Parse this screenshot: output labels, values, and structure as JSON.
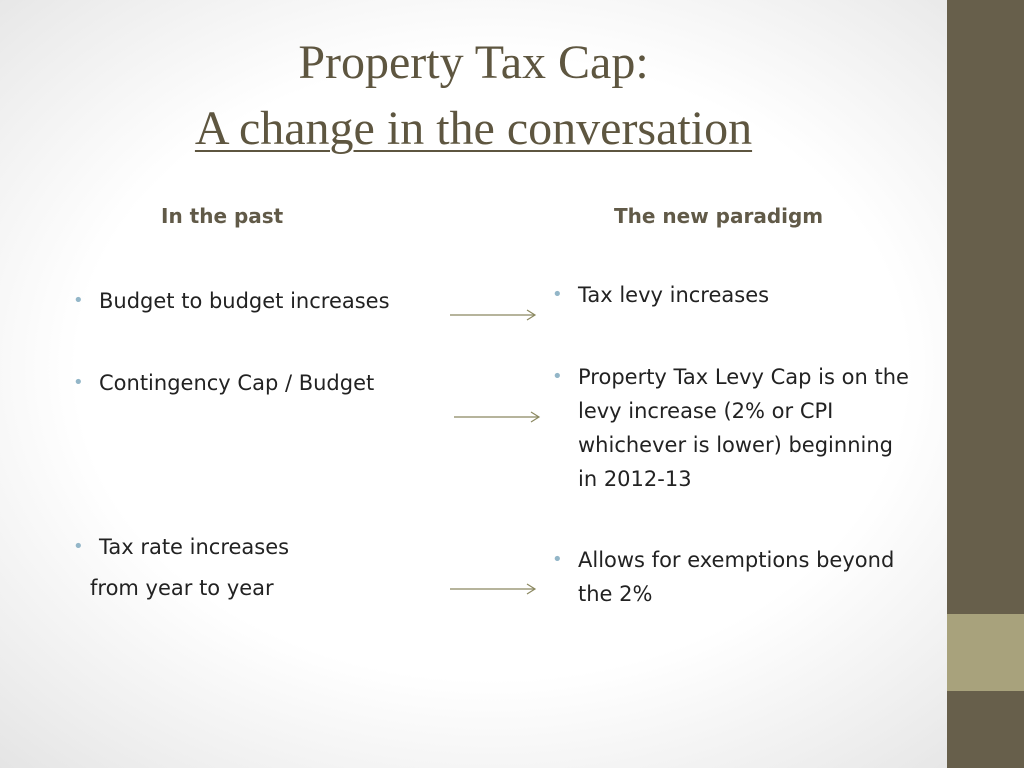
{
  "slide": {
    "title_line1": "Property Tax Cap:",
    "title_line2": "A change in the conversation",
    "left_column": {
      "heading": "In the past",
      "items": [
        "Budget to budget increases",
        "Contingency Cap / Budget",
        "Tax rate increases",
        "from year to year"
      ]
    },
    "right_column": {
      "heading": "The new paradigm",
      "items": [
        "Tax levy increases",
        "Property Tax Levy Cap is on the",
        "levy increase (2% or CPI",
        "whichever is lower) beginning",
        "in 2012-13",
        "Allows for exemptions beyond",
        "the 2%"
      ]
    },
    "bullet_glyph": "•",
    "colors": {
      "title": "#5e5640",
      "side_bar": "#675f4b",
      "side_accent": "#a8a27c",
      "bullet": "#93b6c8",
      "arrow": "#8b8860"
    }
  }
}
